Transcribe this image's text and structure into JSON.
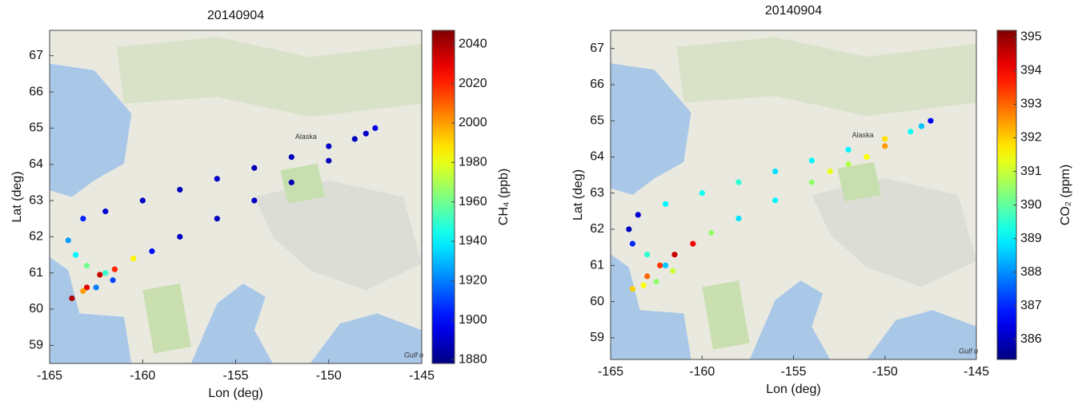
{
  "chart_data": [
    {
      "type": "scatter",
      "title": "20140904",
      "xlabel": "Lon (deg)",
      "ylabel": "Lat (deg)",
      "colorbar_label": "CH₄ (ppb)",
      "colormap": "jet",
      "annotations": [
        "Alaska",
        "Gulf o"
      ],
      "xlim": [
        -165,
        -145
      ],
      "xticks": [
        -165,
        -160,
        -155,
        -150,
        -145
      ],
      "ylim": [
        58.5,
        67.7
      ],
      "yticks": [
        59,
        60,
        61,
        62,
        63,
        64,
        65,
        66,
        67
      ],
      "clim": [
        1878,
        2047
      ],
      "cticks": [
        1880,
        1900,
        1920,
        1940,
        1960,
        1980,
        2000,
        2020,
        2040
      ],
      "x": [
        -147.5,
        -148.0,
        -148.6,
        -150,
        -152,
        -154,
        -156,
        -158,
        -160,
        -162,
        -163.2,
        -164,
        -163.6,
        -163,
        -162.3,
        -150,
        -152,
        -154,
        -156,
        -158,
        -159.5,
        -160.5,
        -161.5,
        -162.3,
        -163,
        -163.8,
        -163.2,
        -162.5,
        -161.6,
        -162.0
      ],
      "y": [
        65.0,
        64.85,
        64.7,
        64.5,
        64.2,
        63.9,
        63.6,
        63.3,
        63.0,
        62.7,
        62.5,
        61.9,
        61.5,
        61.2,
        60.95,
        64.1,
        63.5,
        63.0,
        62.5,
        62.0,
        61.6,
        61.4,
        61.1,
        60.95,
        60.6,
        60.3,
        60.5,
        60.6,
        60.8,
        61.0
      ],
      "values": [
        1895,
        1890,
        1888,
        1890,
        1888,
        1887,
        1890,
        1888,
        1890,
        1892,
        1905,
        1925,
        1940,
        1960,
        1990,
        1888,
        1887,
        1889,
        1888,
        1890,
        1900,
        1985,
        2020,
        2035,
        2030,
        2040,
        2000,
        1920,
        1910,
        1950
      ]
    },
    {
      "type": "scatter",
      "title": "20140904",
      "xlabel": "Lon (deg)",
      "ylabel": "Lat (deg)",
      "colorbar_label": "CO₂ (ppm)",
      "colormap": "jet",
      "annotations": [
        "Alaska",
        "Gulf o"
      ],
      "xlim": [
        -165,
        -145
      ],
      "xticks": [
        -165,
        -160,
        -155,
        -150,
        -145
      ],
      "ylim": [
        58.4,
        67.5
      ],
      "yticks": [
        59,
        60,
        61,
        62,
        63,
        64,
        65,
        66,
        67
      ],
      "clim": [
        385.4,
        395.2
      ],
      "cticks": [
        386,
        387,
        388,
        389,
        390,
        391,
        392,
        393,
        394,
        395
      ],
      "x": [
        -147.5,
        -148.0,
        -148.6,
        -150,
        -152,
        -154,
        -156,
        -158,
        -160,
        -162,
        -163.5,
        -164,
        -163.8,
        -163,
        -162.3,
        -150,
        -151,
        -152,
        -153,
        -154,
        -156,
        -158,
        -159.5,
        -160.5,
        -161.5,
        -162.3,
        -163,
        -163.8,
        -163.2,
        -162.5,
        -161.6,
        -162.0
      ],
      "y": [
        65.0,
        64.85,
        64.7,
        64.5,
        64.2,
        63.9,
        63.6,
        63.3,
        63.0,
        62.7,
        62.4,
        62.0,
        61.6,
        61.3,
        61.0,
        64.3,
        64.0,
        63.8,
        63.6,
        63.3,
        62.8,
        62.3,
        61.9,
        61.6,
        61.3,
        61.0,
        60.7,
        60.35,
        60.45,
        60.55,
        60.85,
        61.0
      ],
      "values": [
        386.5,
        388.5,
        389.2,
        391.8,
        389.0,
        389.0,
        388.8,
        389.5,
        389.2,
        389.0,
        386.2,
        386.0,
        387.0,
        389.5,
        390.5,
        392.5,
        391.5,
        390.8,
        391.3,
        390.5,
        389.0,
        388.8,
        390.5,
        394.0,
        394.5,
        393.5,
        393.0,
        392.0,
        391.5,
        390.5,
        391.0,
        388.5
      ]
    }
  ]
}
